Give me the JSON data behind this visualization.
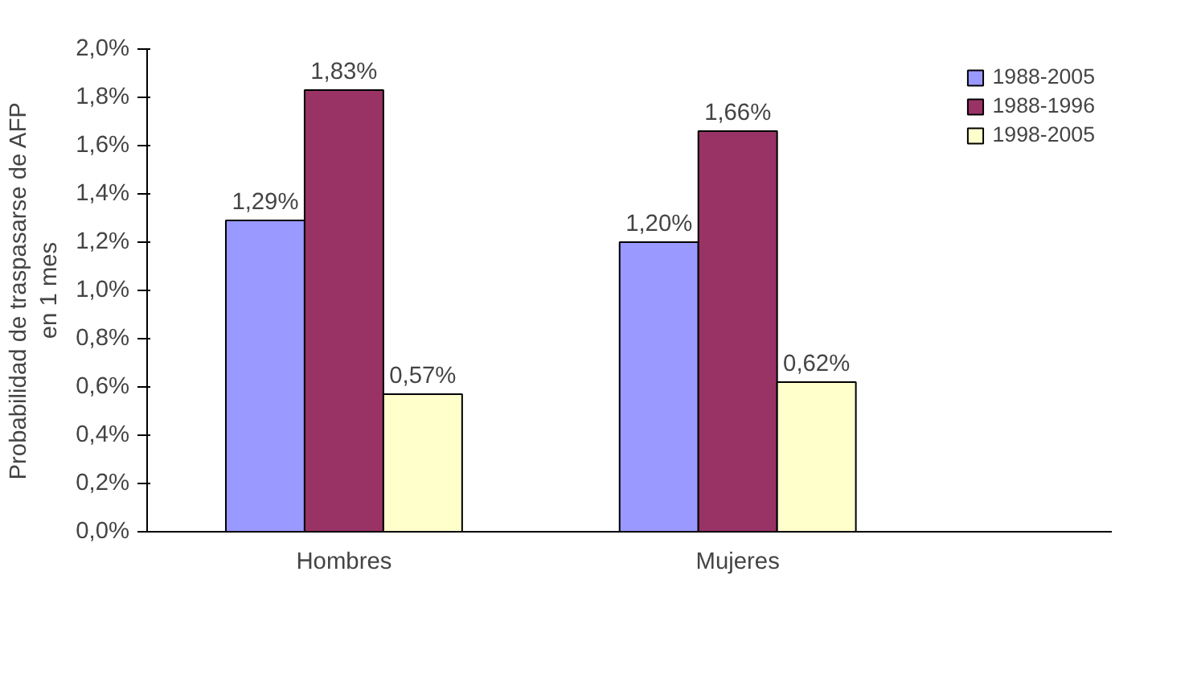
{
  "chart_data": {
    "type": "bar",
    "ylabel": "Probabilidad de traspasarse de AFP\nen 1 mes",
    "categories": [
      "Hombres",
      "Mujeres"
    ],
    "series": [
      {
        "name": "1988-2005",
        "color": "#9999ff",
        "values": [
          1.29,
          1.2
        ],
        "value_labels": [
          "1,29%",
          "1,20%"
        ]
      },
      {
        "name": "1988-1996",
        "color": "#993366",
        "values": [
          1.83,
          1.66
        ],
        "value_labels": [
          "1,83%",
          "1,66%"
        ]
      },
      {
        "name": "1998-2005",
        "color": "#ffffcc",
        "values": [
          0.57,
          0.62
        ],
        "value_labels": [
          "0,57%",
          "0,62%"
        ]
      }
    ],
    "ylim": [
      0,
      2.0
    ],
    "yticks": [
      {
        "value": 0,
        "label": "0,0%"
      },
      {
        "value": 0.2,
        "label": "0,2%"
      },
      {
        "value": 0.4,
        "label": "0,4%"
      },
      {
        "value": 0.6,
        "label": "0,6%"
      },
      {
        "value": 0.8,
        "label": "0,8%"
      },
      {
        "value": 1.0,
        "label": "1,0%"
      },
      {
        "value": 1.2,
        "label": "1,2%"
      },
      {
        "value": 1.4,
        "label": "1,4%"
      },
      {
        "value": 1.6,
        "label": "1,6%"
      },
      {
        "value": 1.8,
        "label": "1,8%"
      },
      {
        "value": 2.0,
        "label": "2,0%"
      }
    ],
    "grid": false,
    "legend": "top right"
  }
}
